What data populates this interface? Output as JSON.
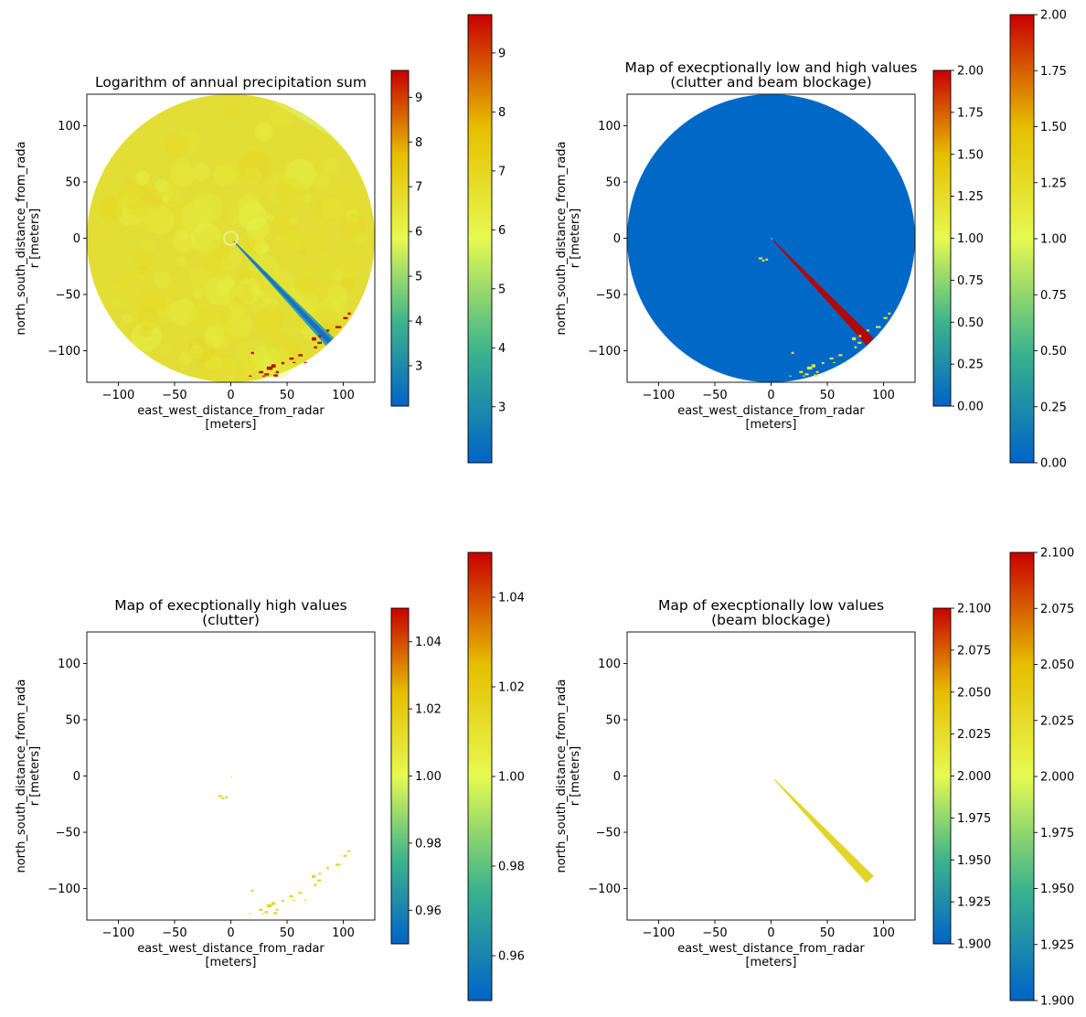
{
  "colormap": [
    "#0064c8",
    "#3cb48c",
    "#e6fa50",
    "#e6be00",
    "#c80000"
  ],
  "chart_data": [
    {
      "type": "heatmap",
      "title": [
        "Logarithm of annual precipitation sum"
      ],
      "xlabel": [
        "east_west_distance_from_radar",
        "[meters]"
      ],
      "ylabel": [
        "north_south_distance_from_rada",
        "r [meters]"
      ],
      "xlim": [
        -128,
        128
      ],
      "ylim": [
        -128,
        128
      ],
      "xticks": [
        -100,
        -50,
        0,
        50,
        100
      ],
      "yticks": [
        -100,
        -50,
        0,
        50,
        100
      ],
      "content": "precip",
      "colorbars": [
        {
          "range": [
            2.1,
            9.6
          ],
          "ticks": [
            "3",
            "4",
            "5",
            "6",
            "7",
            "8",
            "9"
          ],
          "values": [
            3,
            4,
            5,
            6,
            7,
            8,
            9
          ]
        },
        {
          "range": [
            2.05,
            9.65
          ],
          "ticks": [
            "3",
            "4",
            "5",
            "6",
            "7",
            "8",
            "9"
          ],
          "values": [
            3,
            4,
            5,
            6,
            7,
            8,
            9
          ]
        }
      ]
    },
    {
      "type": "heatmap",
      "title": [
        "Map of execptionally low and high values",
        "(clutter and beam blockage)"
      ],
      "xlabel": [
        "east_west_distance_from_radar",
        "[meters]"
      ],
      "ylabel": [
        "north_south_distance_from_rada",
        "r [meters]"
      ],
      "xlim": [
        -128,
        128
      ],
      "ylim": [
        -128,
        128
      ],
      "xticks": [
        -100,
        -50,
        0,
        50,
        100
      ],
      "yticks": [
        -100,
        -50,
        0,
        50,
        100
      ],
      "content": "mask_both",
      "colorbars": [
        {
          "range": [
            0,
            2
          ],
          "ticks": [
            "0.00",
            "0.25",
            "0.50",
            "0.75",
            "1.00",
            "1.25",
            "1.50",
            "1.75",
            "2.00"
          ],
          "values": [
            0,
            0.25,
            0.5,
            0.75,
            1.0,
            1.25,
            1.5,
            1.75,
            2.0
          ]
        },
        {
          "range": [
            0,
            2
          ],
          "ticks": [
            "0.00",
            "0.25",
            "0.50",
            "0.75",
            "1.00",
            "1.25",
            "1.50",
            "1.75",
            "2.00"
          ],
          "values": [
            0,
            0.25,
            0.5,
            0.75,
            1.0,
            1.25,
            1.5,
            1.75,
            2.0
          ]
        }
      ]
    },
    {
      "type": "heatmap",
      "title": [
        "Map of execptionally high values",
        "(clutter)"
      ],
      "xlabel": [
        "east_west_distance_from_radar",
        "[meters]"
      ],
      "ylabel": [
        "north_south_distance_from_rada",
        "r [meters]"
      ],
      "xlim": [
        -128,
        128
      ],
      "ylim": [
        -128,
        128
      ],
      "xticks": [
        -100,
        -50,
        0,
        50,
        100
      ],
      "yticks": [
        -100,
        -50,
        0,
        50,
        100
      ],
      "content": "clutter",
      "colorbars": [
        {
          "range": [
            0.95,
            1.05
          ],
          "ticks": [
            "0.96",
            "0.98",
            "1.00",
            "1.02",
            "1.04"
          ],
          "values": [
            0.96,
            0.98,
            1.0,
            1.02,
            1.04
          ]
        },
        {
          "range": [
            0.95,
            1.05
          ],
          "ticks": [
            "0.96",
            "0.98",
            "1.00",
            "1.02",
            "1.04"
          ],
          "values": [
            0.96,
            0.98,
            1.0,
            1.02,
            1.04
          ]
        }
      ]
    },
    {
      "type": "heatmap",
      "title": [
        "Map of execptionally low values",
        "(beam blockage)"
      ],
      "xlabel": [
        "east_west_distance_from_radar",
        "[meters]"
      ],
      "ylabel": [
        "north_south_distance_from_rada",
        "r [meters]"
      ],
      "xlim": [
        -128,
        128
      ],
      "ylim": [
        -128,
        128
      ],
      "xticks": [
        -100,
        -50,
        0,
        50,
        100
      ],
      "yticks": [
        -100,
        -50,
        0,
        50,
        100
      ],
      "content": "blockage",
      "colorbars": [
        {
          "range": [
            1.9,
            2.1
          ],
          "ticks": [
            "1.900",
            "1.925",
            "1.950",
            "1.975",
            "2.000",
            "2.025",
            "2.050",
            "2.075",
            "2.100"
          ],
          "values": [
            1.9,
            1.925,
            1.95,
            1.975,
            2.0,
            2.025,
            2.05,
            2.075,
            2.1
          ]
        },
        {
          "range": [
            1.9,
            2.1
          ],
          "ticks": [
            "1.900",
            "1.925",
            "1.950",
            "1.975",
            "2.000",
            "2.025",
            "2.050",
            "2.075",
            "2.100"
          ],
          "values": [
            1.9,
            1.925,
            1.95,
            1.975,
            2.0,
            2.025,
            2.05,
            2.075,
            2.1
          ]
        }
      ]
    }
  ]
}
